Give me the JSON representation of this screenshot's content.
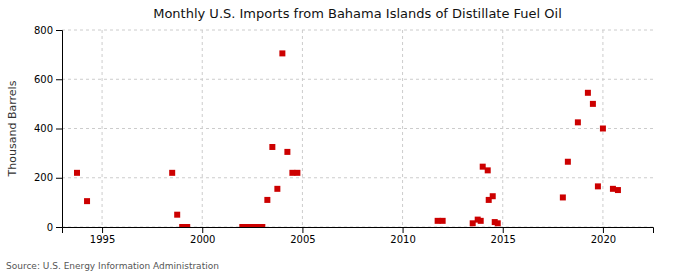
{
  "chart_data": {
    "type": "scatter",
    "title": "Monthly U.S. Imports from Bahama Islands of Distillate Fuel Oil",
    "ylabel": "Thousand Barrels",
    "annotations": [
      "Source: U.S. Energy Information Administration"
    ],
    "color": "#cc0000",
    "marker": "square",
    "grid": true,
    "xlim": [
      1993.0,
      2022.5
    ],
    "xticks": [
      1995,
      2000,
      2005,
      2010,
      2015,
      2020
    ],
    "ylim": [
      0,
      800
    ],
    "yticks": [
      0,
      200,
      400,
      600,
      800
    ],
    "x": [
      1993.75,
      1994.25,
      1998.5,
      1998.75,
      1999.0,
      1999.25,
      2002.0,
      2002.25,
      2002.5,
      2002.75,
      2003.0,
      2003.25,
      2003.5,
      2003.75,
      2004.0,
      2004.25,
      2004.5,
      2004.75,
      2011.75,
      2012.0,
      2013.5,
      2013.75,
      2013.9,
      2014.0,
      2014.25,
      2014.3,
      2014.5,
      2014.6,
      2014.75,
      2018.0,
      2018.25,
      2018.75,
      2019.25,
      2019.5,
      2019.75,
      2020.0,
      2020.5,
      2020.75
    ],
    "values": [
      220,
      105,
      220,
      50,
      0,
      0,
      0,
      0,
      0,
      0,
      0,
      110,
      325,
      155,
      705,
      305,
      220,
      220,
      25,
      25,
      15,
      30,
      25,
      245,
      230,
      110,
      125,
      20,
      15,
      120,
      265,
      425,
      545,
      500,
      165,
      400,
      155,
      150
    ]
  }
}
